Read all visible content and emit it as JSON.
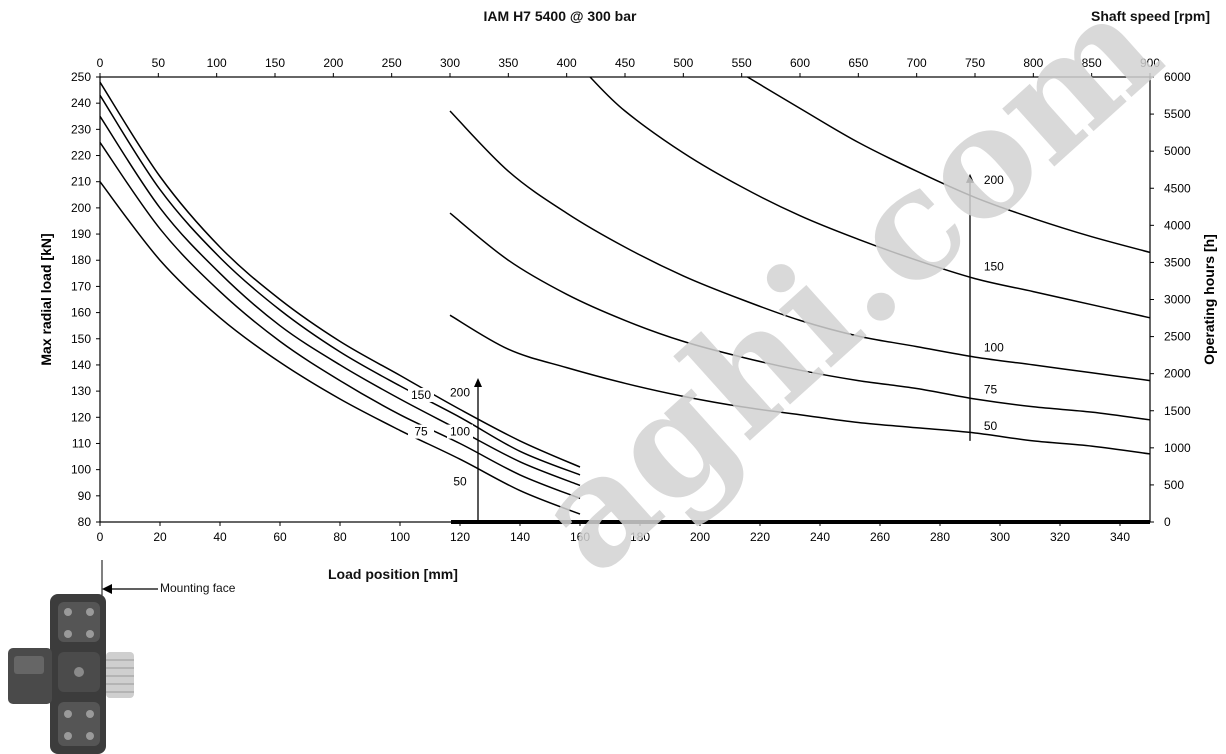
{
  "header": {
    "title": "IAM H7 5400 @ 300 bar",
    "top_axis_label": "Shaft speed [rpm]"
  },
  "annotation": {
    "mounting_face": "Mounting face"
  },
  "watermark": {
    "text": "aghi.com",
    "color": "#d3d3d3"
  },
  "icon_names": [
    "arrow-left-icon",
    "hydraulic-motor-icon"
  ],
  "chart_data": {
    "type": "line",
    "title": "IAM H7 5400 @ 300 bar",
    "xlabel": "Load position [mm]",
    "ylabel": "Max radial load [kN]",
    "top_xlabel": "Shaft speed [rpm]",
    "right_ylabel": "Operating hours [h]",
    "xlim": [
      0,
      350
    ],
    "ylim": [
      80,
      250
    ],
    "top_xlim": [
      0,
      900
    ],
    "right_ylim": [
      0,
      6000
    ],
    "x_ticks": [
      0,
      20,
      40,
      60,
      80,
      100,
      120,
      140,
      160,
      180,
      200,
      220,
      240,
      260,
      280,
      300,
      320,
      340
    ],
    "x_tick_labels": [
      "0",
      "20",
      "40",
      "60",
      "80",
      "100",
      "120",
      "140",
      "160",
      "180",
      "200",
      "220",
      "240",
      "260",
      "280",
      "300",
      "320",
      "340"
    ],
    "y_ticks": [
      80,
      90,
      100,
      110,
      120,
      130,
      140,
      150,
      160,
      170,
      180,
      190,
      200,
      210,
      220,
      230,
      240,
      250
    ],
    "y_tick_labels": [
      "80",
      "90",
      "100",
      "110",
      "120",
      "130",
      "140",
      "150",
      "160",
      "170",
      "180",
      "190",
      "200",
      "210",
      "220",
      "230",
      "240",
      "250"
    ],
    "top_ticks": [
      0,
      50,
      100,
      150,
      200,
      250,
      300,
      350,
      400,
      450,
      500,
      550,
      600,
      650,
      700,
      750,
      800,
      850,
      900
    ],
    "top_tick_labels": [
      "0",
      "50",
      "100",
      "150",
      "200",
      "250",
      "300",
      "350",
      "400",
      "450",
      "500",
      "550",
      "600",
      "650",
      "700",
      "750",
      "800",
      "850",
      "900"
    ],
    "right_ticks": [
      0,
      500,
      1000,
      1500,
      2000,
      2500,
      3000,
      3500,
      4000,
      4500,
      5000,
      5500,
      6000
    ],
    "right_tick_labels": [
      "0",
      "500",
      "1000",
      "1500",
      "2000",
      "2500",
      "3000",
      "3500",
      "4000",
      "4500",
      "5000",
      "5500",
      "6000"
    ],
    "grid": false,
    "load_series": [
      {
        "label": "50",
        "x": [
          0,
          20,
          40,
          60,
          80,
          100,
          120,
          140,
          160
        ],
        "y": [
          210,
          180,
          158,
          141,
          127,
          115,
          104,
          92,
          83
        ]
      },
      {
        "label": "75",
        "x": [
          0,
          20,
          40,
          60,
          80,
          100,
          120,
          140,
          160
        ],
        "y": [
          225,
          192,
          168,
          149,
          134,
          121,
          110,
          98,
          89
        ]
      },
      {
        "label": "100",
        "x": [
          0,
          20,
          40,
          60,
          80,
          100,
          120,
          140,
          160
        ],
        "y": [
          235,
          200,
          175,
          155,
          140,
          127,
          115,
          103,
          94
        ]
      },
      {
        "label": "150",
        "x": [
          0,
          20,
          40,
          60,
          80,
          100,
          120,
          140,
          160
        ],
        "y": [
          243,
          207,
          181,
          161,
          145,
          132,
          120,
          107,
          98
        ]
      },
      {
        "label": "200",
        "x": [
          0,
          20,
          40,
          60,
          80,
          100,
          120,
          140,
          160
        ],
        "y": [
          248,
          212,
          185,
          165,
          149,
          136,
          123,
          111,
          101
        ]
      }
    ],
    "load_labels_at": [
      {
        "text": "50",
        "x": 120,
        "y": 94
      },
      {
        "text": "75",
        "x": 107,
        "y": 113
      },
      {
        "text": "100",
        "x": 120,
        "y": 113
      },
      {
        "text": "150",
        "x": 107,
        "y": 127
      },
      {
        "text": "200",
        "x": 120,
        "y": 128
      }
    ],
    "speed_series": [
      {
        "label": "50",
        "rpm": [
          300,
          350,
          400,
          450,
          500,
          550,
          600,
          650,
          700,
          750,
          800,
          850,
          900
        ],
        "y": [
          159,
          146,
          139,
          133,
          128,
          124,
          121,
          118,
          116,
          114,
          111,
          109,
          106
        ]
      },
      {
        "label": "75",
        "rpm": [
          300,
          350,
          400,
          450,
          500,
          550,
          600,
          650,
          700,
          750,
          800,
          850,
          900
        ],
        "y": [
          198,
          180,
          167,
          157,
          149,
          143,
          138,
          134,
          131,
          127,
          124,
          122,
          119
        ]
      },
      {
        "label": "100",
        "rpm": [
          300,
          350,
          400,
          450,
          500,
          550,
          600,
          650,
          700,
          750,
          800,
          850,
          900
        ],
        "y": [
          237,
          214,
          198,
          185,
          174,
          165,
          157,
          151,
          147,
          143,
          140,
          137,
          134
        ]
      },
      {
        "label": "150",
        "rpm": [
          420,
          450,
          500,
          550,
          600,
          650,
          700,
          750,
          800,
          850,
          900
        ],
        "y": [
          250,
          237,
          221,
          208,
          197,
          188,
          180,
          173,
          168,
          163,
          158
        ]
      },
      {
        "label": "200",
        "rpm": [
          555,
          600,
          650,
          700,
          750,
          800,
          850,
          900
        ],
        "y": [
          250,
          238,
          225,
          214,
          204,
          196,
          189,
          183
        ]
      }
    ],
    "speed_labels_at": [
      {
        "text": "50",
        "rpm": 755,
        "y": 114
      },
      {
        "text": "75",
        "rpm": 755,
        "y": 128
      },
      {
        "text": "100",
        "rpm": 755,
        "y": 144
      },
      {
        "text": "150",
        "rpm": 755,
        "y": 175
      },
      {
        "text": "200",
        "rpm": 755,
        "y": 208
      }
    ],
    "arrows": [
      {
        "x": 126,
        "y_from": 80,
        "y_to": 135
      },
      {
        "x": 290,
        "y_from": 111,
        "y_to": 213
      }
    ]
  }
}
